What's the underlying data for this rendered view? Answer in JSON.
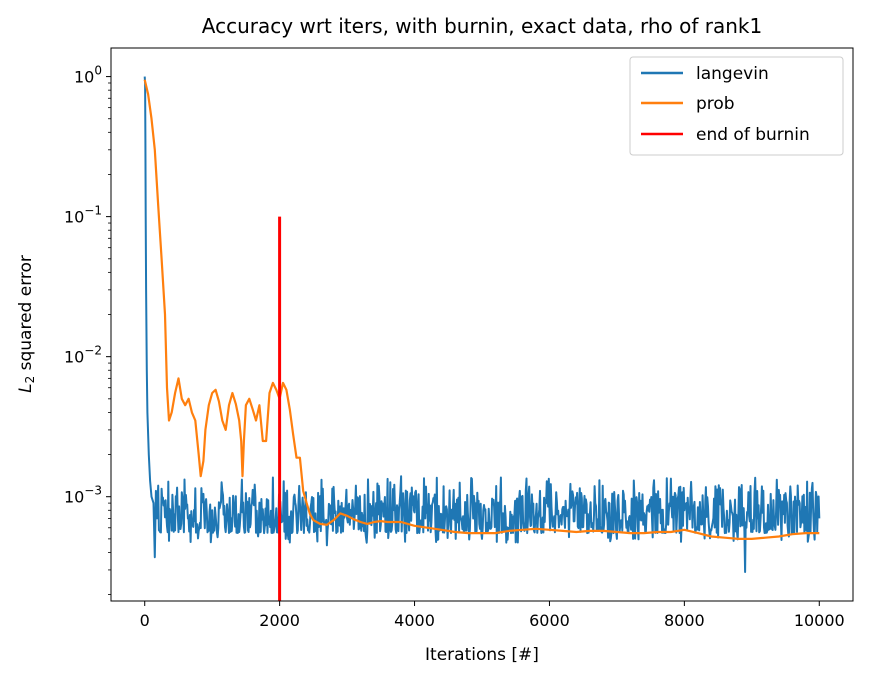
{
  "chart_data": {
    "type": "line",
    "title": "Accuracy wrt iters, with burnin, exact data, rho of rank1",
    "xlabel": "Iterations [#]",
    "ylabel_main": "L",
    "ylabel_sub": "2",
    "ylabel_rest": " squared error",
    "y_scale": "log",
    "xlim": [
      -500,
      10500
    ],
    "ylim": [
      0.00018,
      1.6
    ],
    "grid": false,
    "legend_position": "top-right",
    "x_ticks": [
      0,
      2000,
      4000,
      6000,
      8000,
      10000
    ],
    "x_tick_labels": [
      "0",
      "2000",
      "4000",
      "6000",
      "8000",
      "10000"
    ],
    "y_ticks": [
      {
        "value": 1,
        "base": "10",
        "exp": "0"
      },
      {
        "value": 0.1,
        "base": "10",
        "exp": "−1"
      },
      {
        "value": 0.01,
        "base": "10",
        "exp": "−2"
      },
      {
        "value": 0.001,
        "base": "10",
        "exp": "−3"
      }
    ],
    "series": [
      {
        "name": "langevin",
        "color": "#1f77b4",
        "points": [
          [
            0,
            1.0
          ],
          [
            5,
            0.9
          ],
          [
            10,
            0.35
          ],
          [
            15,
            0.1
          ],
          [
            20,
            0.03
          ],
          [
            30,
            0.008
          ],
          [
            40,
            0.004
          ],
          [
            60,
            0.002
          ],
          [
            80,
            0.0013
          ],
          [
            100,
            0.001
          ],
          [
            130,
            0.0009
          ],
          [
            150,
            0.00037
          ],
          [
            165,
            0.0011
          ],
          [
            180,
            0.0007
          ],
          [
            200,
            0.0012
          ],
          [
            1000,
            0.0008
          ],
          [
            2000,
            0.00045
          ],
          [
            2000,
            0.0009
          ],
          [
            2700,
            0.00045
          ],
          [
            3800,
            0.0014
          ],
          [
            5000,
            0.0005
          ],
          [
            6000,
            0.0008
          ],
          [
            7000,
            0.0005
          ],
          [
            8000,
            0.0008
          ],
          [
            8900,
            0.00029
          ],
          [
            8920,
            0.0006
          ],
          [
            10000,
            0.0007
          ]
        ],
        "noise_band": [
          0.00055,
          0.00125
        ]
      },
      {
        "name": "prob",
        "color": "#ff7f0e",
        "points": [
          [
            0,
            0.95
          ],
          [
            50,
            0.75
          ],
          [
            100,
            0.5
          ],
          [
            150,
            0.3
          ],
          [
            200,
            0.12
          ],
          [
            250,
            0.05
          ],
          [
            300,
            0.02
          ],
          [
            330,
            0.006
          ],
          [
            360,
            0.0035
          ],
          [
            400,
            0.004
          ],
          [
            450,
            0.0055
          ],
          [
            500,
            0.007
          ],
          [
            550,
            0.005
          ],
          [
            600,
            0.0045
          ],
          [
            650,
            0.005
          ],
          [
            700,
            0.004
          ],
          [
            750,
            0.0035
          ],
          [
            800,
            0.002
          ],
          [
            830,
            0.0014
          ],
          [
            870,
            0.0018
          ],
          [
            900,
            0.003
          ],
          [
            950,
            0.0045
          ],
          [
            1000,
            0.0055
          ],
          [
            1050,
            0.0058
          ],
          [
            1100,
            0.0048
          ],
          [
            1150,
            0.0035
          ],
          [
            1200,
            0.003
          ],
          [
            1250,
            0.0045
          ],
          [
            1300,
            0.0055
          ],
          [
            1350,
            0.0046
          ],
          [
            1400,
            0.0035
          ],
          [
            1430,
            0.0025
          ],
          [
            1450,
            0.0014
          ],
          [
            1470,
            0.0025
          ],
          [
            1500,
            0.0045
          ],
          [
            1550,
            0.005
          ],
          [
            1600,
            0.0042
          ],
          [
            1650,
            0.0035
          ],
          [
            1700,
            0.0045
          ],
          [
            1750,
            0.0025
          ],
          [
            1800,
            0.0025
          ],
          [
            1850,
            0.0055
          ],
          [
            1900,
            0.0065
          ],
          [
            1950,
            0.0058
          ],
          [
            2000,
            0.005
          ],
          [
            2050,
            0.0065
          ],
          [
            2100,
            0.0058
          ],
          [
            2150,
            0.0042
          ],
          [
            2200,
            0.0028
          ],
          [
            2250,
            0.0019
          ],
          [
            2300,
            0.0019
          ],
          [
            2350,
            0.0011
          ],
          [
            2400,
            0.0009
          ],
          [
            2450,
            0.00075
          ],
          [
            2500,
            0.00068
          ],
          [
            2600,
            0.00064
          ],
          [
            2700,
            0.00063
          ],
          [
            2800,
            0.00068
          ],
          [
            2900,
            0.00076
          ],
          [
            3000,
            0.00073
          ],
          [
            3100,
            0.00069
          ],
          [
            3200,
            0.00066
          ],
          [
            3300,
            0.00064
          ],
          [
            3400,
            0.00066
          ],
          [
            3500,
            0.00067
          ],
          [
            3600,
            0.00066
          ],
          [
            3800,
            0.00066
          ],
          [
            4000,
            0.00062
          ],
          [
            4200,
            0.0006
          ],
          [
            4400,
            0.00058
          ],
          [
            4600,
            0.00056
          ],
          [
            4800,
            0.00055
          ],
          [
            5000,
            0.00055
          ],
          [
            5200,
            0.00055
          ],
          [
            5400,
            0.00057
          ],
          [
            5600,
            0.00058
          ],
          [
            5800,
            0.00059
          ],
          [
            6000,
            0.00058
          ],
          [
            6200,
            0.00057
          ],
          [
            6400,
            0.00056
          ],
          [
            6600,
            0.00057
          ],
          [
            6800,
            0.00057
          ],
          [
            7000,
            0.00056
          ],
          [
            7200,
            0.00055
          ],
          [
            7400,
            0.00055
          ],
          [
            7600,
            0.00056
          ],
          [
            7800,
            0.00056
          ],
          [
            8000,
            0.00058
          ],
          [
            8200,
            0.00055
          ],
          [
            8400,
            0.00052
          ],
          [
            8600,
            0.00051
          ],
          [
            8800,
            0.0005
          ],
          [
            9000,
            0.0005
          ],
          [
            9200,
            0.00051
          ],
          [
            9400,
            0.00052
          ],
          [
            9600,
            0.00054
          ],
          [
            9800,
            0.00055
          ],
          [
            10000,
            0.00055
          ]
        ]
      },
      {
        "name": "end of burnin",
        "color": "#ff0000",
        "points": [
          [
            2000,
            0.00018
          ],
          [
            2000,
            0.1
          ]
        ]
      }
    ]
  }
}
